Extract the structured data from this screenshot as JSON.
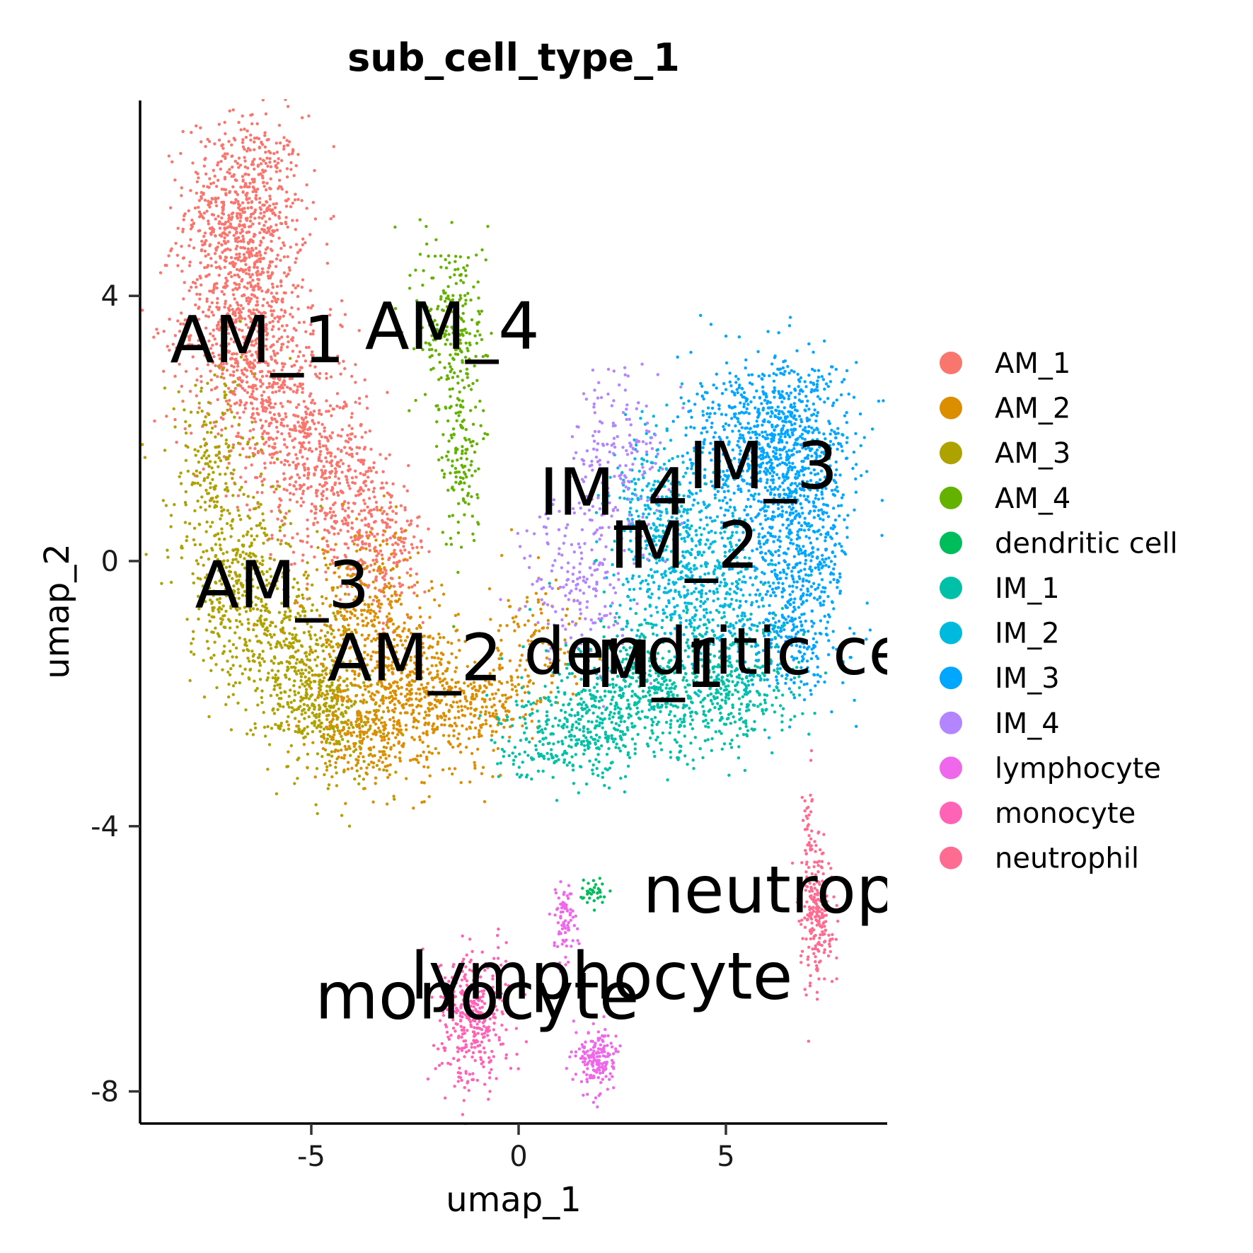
{
  "chart_data": {
    "type": "scatter",
    "title": "sub_cell_type_1",
    "xlabel": "umap_1",
    "ylabel": "umap_2",
    "xlim": [
      -8.9,
      8.9
    ],
    "ylim": [
      -8.5,
      7.0
    ],
    "xticks": [
      {
        "value": -5,
        "label": "-5"
      },
      {
        "value": 0,
        "label": "0"
      },
      {
        "value": 5,
        "label": "5"
      }
    ],
    "yticks": [
      {
        "value": 4,
        "label": "4"
      },
      {
        "value": 0,
        "label": "0"
      },
      {
        "value": -4,
        "label": "-4"
      },
      {
        "value": -8,
        "label": "-8"
      }
    ],
    "grid": false,
    "legend_position": "right",
    "series": [
      {
        "name": "AM_1",
        "color": "#F8766D",
        "label_at": [
          -6.3,
          3.0
        ]
      },
      {
        "name": "AM_2",
        "color": "#DB8E00",
        "label_at": [
          -2.5,
          -1.8
        ]
      },
      {
        "name": "AM_3",
        "color": "#AEA200",
        "label_at": [
          -5.7,
          -0.7
        ]
      },
      {
        "name": "AM_4",
        "color": "#64B200",
        "label_at": [
          -1.6,
          3.2
        ]
      },
      {
        "name": "dendritic cell",
        "color": "#00BD5C",
        "label_at": [
          5.2,
          -1.7
        ]
      },
      {
        "name": "IM_1",
        "color": "#00C1A7",
        "label_at": [
          3.2,
          -1.9
        ]
      },
      {
        "name": "IM_2",
        "color": "#00BADE",
        "label_at": [
          4.0,
          -0.1
        ]
      },
      {
        "name": "IM_3",
        "color": "#00A6FF",
        "label_at": [
          5.9,
          1.1
        ]
      },
      {
        "name": "IM_4",
        "color": "#B385FF",
        "label_at": [
          2.3,
          0.7
        ]
      },
      {
        "name": "lymphocyte",
        "color": "#EF67EB",
        "label_at": [
          2.0,
          -6.6
        ]
      },
      {
        "name": "monocyte",
        "color": "#FF63B6",
        "label_at": [
          -1.0,
          -6.9
        ]
      },
      {
        "name": "neutrophil",
        "color": "#FF6C91",
        "label_at": [
          7.0,
          -5.3
        ]
      }
    ]
  }
}
